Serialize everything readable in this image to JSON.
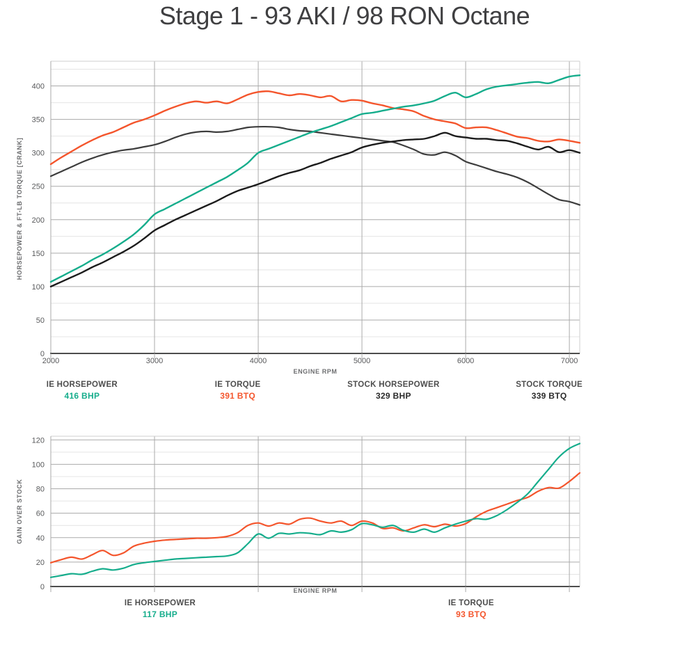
{
  "title": "Stage 1 - 93 AKI / 98 RON Octane",
  "colors": {
    "ie_teal": "#16ad8c",
    "ie_orange": "#f4552c",
    "stock_hp_black": "#1c1c1c",
    "stock_tq_gray": "#3d3d3d",
    "grid_major": "#aaaaaa",
    "grid_minor": "#e4e4e4",
    "plot_border": "#cfcfcf",
    "axis": "#4d4d4d",
    "tick_text": "#58595b"
  },
  "legends": {
    "top": [
      {
        "label": "IE HORSEPOWER",
        "value": "416 BHP",
        "color": "#16ad8c"
      },
      {
        "label": "IE TORQUE",
        "value": "391 BTQ",
        "color": "#f4552c"
      },
      {
        "label": "STOCK HORSEPOWER",
        "value": "329 BHP",
        "color": "#2b2b2b"
      },
      {
        "label": "STOCK TORQUE",
        "value": "339 BTQ",
        "color": "#2b2b2b"
      }
    ],
    "bottom": [
      {
        "label": "IE HORSEPOWER",
        "value": "117 BHP",
        "color": "#16ad8c"
      },
      {
        "label": "IE TORQUE",
        "value": "93 BTQ",
        "color": "#f4552c"
      }
    ]
  },
  "chart_data": [
    {
      "type": "line",
      "id": "top",
      "title": "",
      "xlabel": "ENGINE RPM",
      "ylabel": "HORSEPOWER & FT-LB TORQUE [CRANK]",
      "x_start": 2000,
      "x_step": 100,
      "xlim": [
        2000,
        7100
      ],
      "ylim": [
        0,
        437
      ],
      "y_major": 50,
      "y_minor": 25,
      "y_label_max": 400,
      "x_gridlines": [
        3000,
        4000,
        5000,
        6000,
        7000
      ],
      "x_ticks": [
        2000,
        3000,
        4000,
        5000,
        6000,
        7000
      ],
      "x_tick_labels": [
        "2000",
        "3000",
        "4000",
        "5000",
        "6000",
        "7000"
      ],
      "grid": true,
      "legend_position": "below",
      "series": [
        {
          "name": "STOCK TORQUE",
          "color_key": "stock_tq_gray",
          "width": 2.2,
          "values": [
            265,
            272,
            279,
            286,
            292,
            297,
            301,
            304,
            306,
            309,
            312,
            317,
            323,
            328,
            331,
            332,
            331,
            332,
            335,
            338,
            339,
            339,
            338,
            335,
            333,
            332,
            330,
            328,
            326,
            324,
            322,
            320,
            318,
            316,
            311,
            305,
            298,
            297,
            301,
            296,
            287,
            282,
            277,
            272,
            268,
            263,
            256,
            247,
            238,
            230,
            227,
            222
          ]
        },
        {
          "name": "STOCK HORSEPOWER",
          "color_key": "stock_hp_black",
          "width": 2.4,
          "values": [
            100,
            107,
            114,
            121,
            129,
            136,
            144,
            152,
            161,
            172,
            184,
            192,
            200,
            207,
            214,
            221,
            228,
            236,
            243,
            248,
            253,
            259,
            265,
            270,
            274,
            280,
            285,
            291,
            296,
            301,
            308,
            312,
            315,
            317,
            319,
            320,
            321,
            325,
            330,
            325,
            323,
            321,
            321,
            319,
            318,
            314,
            309,
            305,
            309,
            301,
            304,
            300
          ]
        },
        {
          "name": "IE TORQUE",
          "color_key": "ie_orange",
          "width": 2.4,
          "values": [
            283,
            293,
            302,
            311,
            319,
            326,
            331,
            338,
            345,
            350,
            356,
            363,
            369,
            374,
            377,
            375,
            377,
            374,
            380,
            387,
            391,
            392,
            389,
            386,
            388,
            386,
            383,
            385,
            377,
            379,
            378,
            374,
            371,
            367,
            365,
            362,
            355,
            350,
            347,
            344,
            337,
            338,
            338,
            334,
            329,
            324,
            322,
            318,
            317,
            320,
            318,
            315
          ]
        },
        {
          "name": "IE HORSEPOWER",
          "color_key": "ie_teal",
          "width": 2.4,
          "values": [
            107,
            115,
            123,
            131,
            140,
            148,
            157,
            167,
            178,
            192,
            208,
            216,
            224,
            232,
            240,
            248,
            256,
            264,
            274,
            285,
            300,
            306,
            312,
            318,
            324,
            330,
            335,
            340,
            346,
            352,
            358,
            360,
            363,
            366,
            369,
            371,
            374,
            378,
            385,
            390,
            383,
            388,
            395,
            399,
            401,
            403,
            405,
            406,
            404,
            409,
            414,
            416
          ]
        }
      ]
    },
    {
      "type": "line",
      "id": "bottom",
      "title": "",
      "xlabel": "ENGINE RPM",
      "ylabel": "GAIN OVER STOCK",
      "x_start": 2000,
      "x_step": 100,
      "xlim": [
        2000,
        7100
      ],
      "ylim": [
        0,
        123
      ],
      "y_major": 20,
      "y_minor": 10,
      "y_label_max": 120,
      "x_gridlines": [
        3000,
        4000,
        5000,
        6000,
        7000
      ],
      "x_ticks": [
        2000,
        3000,
        4000,
        5000,
        6000,
        7000
      ],
      "x_tick_labels": [],
      "grid": true,
      "legend_position": "below",
      "series": [
        {
          "name": "IE TORQUE GAIN",
          "color_key": "ie_orange",
          "width": 2.2,
          "values": [
            19.5,
            22,
            24,
            22.5,
            26,
            29.5,
            25.5,
            27.5,
            33,
            35.5,
            37,
            38,
            38.5,
            39,
            39.5,
            39.5,
            40,
            41,
            44,
            50,
            52,
            49.5,
            52,
            51,
            55,
            56,
            53.5,
            52,
            53.5,
            50,
            53.5,
            52,
            47.5,
            48,
            45.5,
            48,
            50.5,
            49,
            51,
            49.5,
            51.5,
            57,
            61.5,
            64.5,
            67.5,
            70.5,
            73,
            78,
            81,
            80.5,
            86,
            93
          ]
        },
        {
          "name": "IE HORSEPOWER GAIN",
          "color_key": "ie_teal",
          "width": 2.2,
          "values": [
            7.5,
            9,
            10.5,
            10,
            12.5,
            14.5,
            13.5,
            15,
            18,
            19.5,
            20.5,
            21.5,
            22.5,
            23,
            23.5,
            24,
            24.5,
            25,
            27.5,
            35,
            43,
            39.5,
            43.5,
            43,
            44,
            43.5,
            42.5,
            45.5,
            44.5,
            46.5,
            51.5,
            50.5,
            48.5,
            50,
            46,
            44.5,
            47,
            44.5,
            48,
            51,
            53.5,
            55.5,
            55,
            58,
            63,
            69,
            76,
            86,
            96,
            106,
            113,
            117
          ]
        }
      ]
    }
  ]
}
